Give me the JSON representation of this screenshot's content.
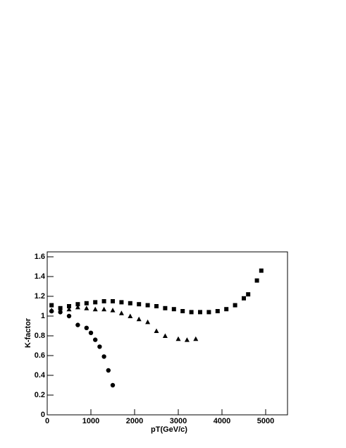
{
  "chart_data": {
    "type": "scatter",
    "xlabel": "pT(GeV/c)",
    "ylabel": "K-factor",
    "xlim": [
      0,
      5500
    ],
    "xticks": [
      0,
      1000,
      2000,
      3000,
      4000,
      5000
    ],
    "ylim": [
      0,
      1.65
    ],
    "yticks": [
      0,
      0.2,
      0.4,
      0.6,
      0.8,
      1,
      1.2,
      1.4,
      1.6
    ],
    "series": [
      {
        "marker": "square",
        "color": "#000000",
        "x": [
          100,
          300,
          500,
          700,
          900,
          1100,
          1300,
          1500,
          1700,
          1900,
          2100,
          2300,
          2500,
          2700,
          2900,
          3100,
          3300,
          3500,
          3700,
          3900,
          4100,
          4300,
          4500,
          4600,
          4800,
          4900
        ],
        "values": [
          1.11,
          1.08,
          1.1,
          1.12,
          1.13,
          1.14,
          1.15,
          1.15,
          1.14,
          1.13,
          1.12,
          1.11,
          1.1,
          1.08,
          1.07,
          1.05,
          1.04,
          1.04,
          1.04,
          1.05,
          1.07,
          1.11,
          1.18,
          1.22,
          1.36,
          1.46
        ]
      },
      {
        "marker": "triangle",
        "color": "#000000",
        "x": [
          100,
          500,
          700,
          900,
          1100,
          1300,
          1500,
          1700,
          1900,
          2100,
          2300,
          2500,
          2700,
          3000,
          3200,
          3400
        ],
        "values": [
          1.06,
          1.07,
          1.09,
          1.08,
          1.07,
          1.07,
          1.06,
          1.03,
          1.0,
          0.97,
          0.94,
          0.85,
          0.8,
          0.77,
          0.76,
          0.77
        ]
      },
      {
        "marker": "circle",
        "color": "#000000",
        "x": [
          100,
          300,
          500,
          700,
          900,
          1000,
          1100,
          1200,
          1300,
          1400,
          1500
        ],
        "values": [
          1.05,
          1.04,
          1.0,
          0.91,
          0.88,
          0.83,
          0.76,
          0.69,
          0.59,
          0.45,
          0.3
        ]
      }
    ]
  }
}
